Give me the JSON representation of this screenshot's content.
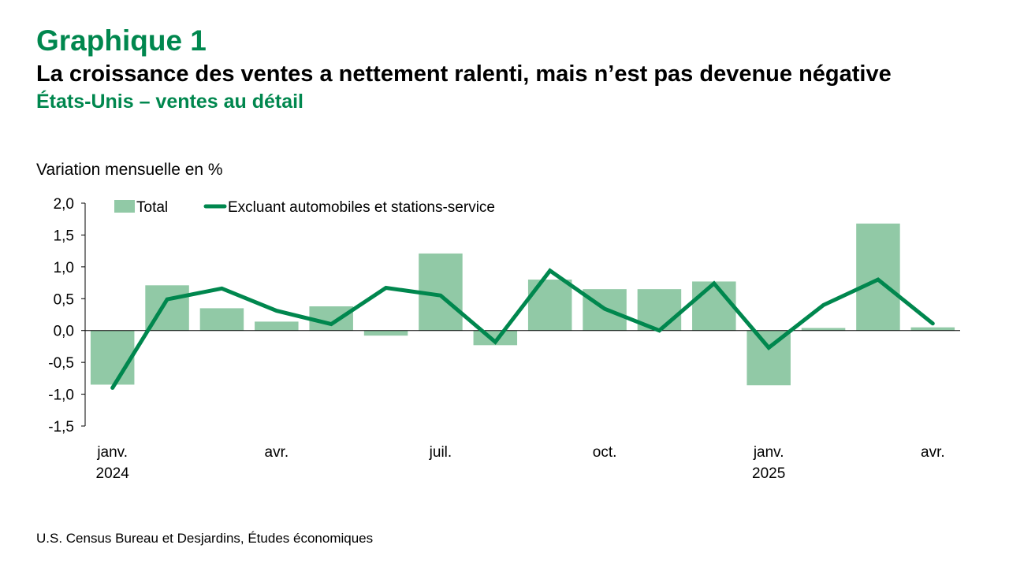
{
  "header": {
    "label": "Graphique 1",
    "title": "La croissance des ventes a nettement ralenti, mais n’est pas devenue négative",
    "subtitle": "États-Unis – ventes au détail"
  },
  "unit_label": "Variation mensuelle en %",
  "source": "U.S. Census Bureau et Desjardins, Études économiques",
  "colors": {
    "bar": "#91C9A6",
    "line": "#00874E",
    "title_green": "#00874E"
  },
  "chart_data": {
    "type": "bar",
    "categories": [
      "janv. 2024",
      "févr. 2024",
      "mars 2024",
      "avr. 2024",
      "mai 2024",
      "juin 2024",
      "juil. 2024",
      "août 2024",
      "sept. 2024",
      "oct. 2024",
      "nov. 2024",
      "déc. 2024",
      "janv. 2025",
      "févr. 2025",
      "mars 2025",
      "avr. 2025"
    ],
    "x_tick_labels": [
      {
        "index": 0,
        "lines": [
          "janv.",
          "2024"
        ]
      },
      {
        "index": 3,
        "lines": [
          "avr."
        ]
      },
      {
        "index": 6,
        "lines": [
          "juil."
        ]
      },
      {
        "index": 9,
        "lines": [
          "oct."
        ]
      },
      {
        "index": 12,
        "lines": [
          "janv.",
          "2025"
        ]
      },
      {
        "index": 15,
        "lines": [
          "avr."
        ]
      }
    ],
    "y_ticks": [
      "2,0",
      "1,5",
      "1,0",
      "0,5",
      "0,0",
      "-0,5",
      "-1,0",
      "-1,5"
    ],
    "ylim": [
      -1.5,
      2.0
    ],
    "grid": false,
    "legend_position": "top-left",
    "series": [
      {
        "name": "Total",
        "type": "bar",
        "values": [
          -0.85,
          0.71,
          0.35,
          0.14,
          0.38,
          -0.08,
          1.21,
          -0.23,
          0.8,
          0.65,
          0.65,
          0.77,
          -0.86,
          0.04,
          1.68,
          0.05
        ]
      },
      {
        "name": "Excluant automobiles et stations-service",
        "type": "line",
        "values": [
          -0.9,
          0.49,
          0.66,
          0.31,
          0.1,
          0.67,
          0.55,
          -0.18,
          0.94,
          0.34,
          0.0,
          0.74,
          -0.27,
          0.4,
          0.8,
          0.11
        ]
      }
    ]
  }
}
